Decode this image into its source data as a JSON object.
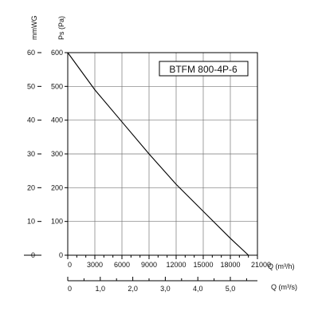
{
  "chart_data": {
    "type": "line",
    "title": "BTFM 800-4P-6",
    "left_axis_label": "mmWG",
    "ylabel": "Ps (Pa)",
    "xlabel": "Q (m³/h)",
    "x2label": "Q (m³/s)",
    "ylim": [
      0,
      600
    ],
    "xlim": [
      0,
      21000
    ],
    "y_ticks": [
      0,
      100,
      200,
      300,
      400,
      500,
      600
    ],
    "y_tick_labels": [
      "0",
      "100",
      "200",
      "300",
      "400",
      "500",
      "600"
    ],
    "mmwg_ticks": [
      0,
      10,
      20,
      30,
      40,
      50,
      60
    ],
    "mmwg_tick_labels": [
      "0",
      "10",
      "20",
      "30",
      "40",
      "50",
      "60"
    ],
    "x_ticks": [
      0,
      3000,
      6000,
      9000,
      12000,
      15000,
      18000,
      21000
    ],
    "x_tick_labels": [
      "0",
      "3000",
      "6000",
      "9000",
      "12000",
      "15000",
      "18000",
      "21000"
    ],
    "x2_major_ticks": [
      0,
      1,
      2,
      3,
      4,
      5
    ],
    "x2_tick_labels": [
      "0",
      "1,0",
      "2,0",
      "3,0",
      "4,0",
      "5,0"
    ],
    "x2_minor_step": 0.5,
    "x2_max": 5.833,
    "series": [
      {
        "x": [
          0,
          3000,
          6000,
          9000,
          12000,
          15000,
          18000,
          20000
        ],
        "y": [
          600,
          490,
          395,
          300,
          210,
          130,
          50,
          0
        ]
      }
    ]
  }
}
